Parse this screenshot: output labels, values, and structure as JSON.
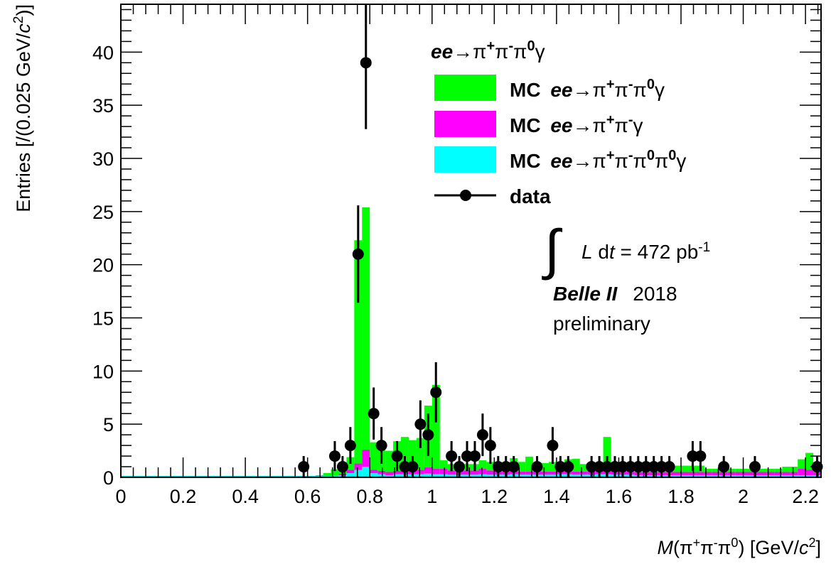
{
  "chart_data": {
    "type": "bar",
    "stacked": true,
    "bin_width": 0.025,
    "xlim": [
      0,
      2.25
    ],
    "ylim": [
      0,
      44.5
    ],
    "xticks": [
      0,
      0.2,
      0.4,
      0.6,
      0.8,
      1,
      1.2,
      1.4,
      1.6,
      1.8,
      2,
      2.2
    ],
    "xtick_labels": [
      "0",
      "0.2",
      "0.4",
      "0.6",
      "0.8",
      "1",
      "1.2",
      "1.4",
      "1.6",
      "1.8",
      "2",
      "2.2"
    ],
    "yticks": [
      0,
      5,
      10,
      15,
      20,
      25,
      30,
      35,
      40
    ],
    "ytick_labels": [
      "0",
      "5",
      "10",
      "15",
      "20",
      "25",
      "30",
      "35",
      "40"
    ],
    "xlabel": {
      "m": "M",
      "open": "(π",
      "plus": "+",
      "pi2": "π",
      "minus": "-",
      "pi3": "π",
      "zero": "0",
      "rest": ") [GeV/",
      "c": "c",
      "two": "2",
      "close": "]"
    },
    "ylabel": {
      "pre": "Entries [/(0.025 GeV/",
      "c": "c",
      "two": "2",
      "close": ")]"
    },
    "legend": {
      "placement": "top-right",
      "header": {
        "ee": "ee",
        "arrow": "→π",
        "plus": "+",
        "pi": "π",
        "minus": "-",
        "pi0": "π",
        "zero": "0",
        "gamma": "γ"
      },
      "entries": [
        {
          "prefix": "MC ",
          "ee": "ee",
          "arrow": "→π",
          "sup1": "+",
          "pi": "π",
          "sup2": "-",
          "rest": "π",
          "sup3": "0",
          "tail": "γ",
          "extra": "",
          "sup4": "",
          "end": "",
          "color": "#00ff00"
        },
        {
          "prefix": "MC ",
          "ee": "ee",
          "arrow": "→π",
          "sup1": "+",
          "pi": "π",
          "sup2": "-",
          "rest": "γ",
          "sup3": "",
          "tail": "",
          "extra": "",
          "sup4": "",
          "end": "",
          "color": "#ff00ff"
        },
        {
          "prefix": "MC ",
          "ee": "ee",
          "arrow": "→π",
          "sup1": "+",
          "pi": "π",
          "sup2": "-",
          "rest": "π",
          "sup3": "0",
          "tail": "π",
          "extra": "0",
          "sup4": "",
          "end": "γ",
          "color": "#00ffff"
        }
      ],
      "data_label": "data"
    },
    "annotation": {
      "integral": "∫",
      "L": "L",
      "dt_pre": " d",
      "t": "t",
      "value": " = 472 pb",
      "sup": "-1",
      "experiment": "Belle II",
      "year": "2018",
      "status": "preliminary"
    },
    "series": [
      {
        "name": "MC ee→π+π-π0π0γ",
        "color": "#00ffff",
        "bins": [
          [
            0.65,
            0.1
          ],
          [
            0.675,
            0.15
          ],
          [
            0.7,
            0.2
          ],
          [
            0.725,
            0.4
          ],
          [
            0.75,
            0.7
          ],
          [
            0.775,
            1.0
          ],
          [
            0.8,
            0.4
          ],
          [
            0.825,
            0.3
          ],
          [
            0.85,
            0.2
          ],
          [
            0.875,
            0.3
          ],
          [
            0.9,
            0.3
          ],
          [
            0.925,
            0.3
          ],
          [
            0.95,
            0.3
          ],
          [
            0.975,
            0.35
          ],
          [
            1.0,
            0.3
          ],
          [
            1.025,
            0.3
          ],
          [
            1.05,
            0.25
          ],
          [
            1.075,
            0.25
          ],
          [
            1.1,
            0.25
          ],
          [
            1.125,
            0.25
          ],
          [
            1.15,
            0.3
          ],
          [
            1.175,
            0.25
          ],
          [
            1.2,
            0.25
          ],
          [
            1.225,
            0.25
          ],
          [
            1.25,
            0.3
          ],
          [
            1.275,
            0.25
          ],
          [
            1.3,
            0.25
          ],
          [
            1.325,
            0.25
          ],
          [
            1.35,
            0.25
          ],
          [
            1.375,
            0.25
          ],
          [
            1.4,
            0.3
          ],
          [
            1.425,
            0.3
          ],
          [
            1.45,
            0.25
          ],
          [
            1.475,
            0.25
          ],
          [
            1.5,
            0.25
          ],
          [
            1.525,
            0.3
          ],
          [
            1.55,
            0.3
          ],
          [
            1.575,
            0.25
          ],
          [
            1.6,
            0.25
          ],
          [
            1.625,
            0.25
          ],
          [
            1.65,
            0.2
          ],
          [
            1.675,
            0.2
          ],
          [
            1.7,
            0.2
          ],
          [
            1.725,
            0.2
          ],
          [
            1.75,
            0.2
          ],
          [
            1.775,
            0.2
          ],
          [
            1.8,
            0.2
          ],
          [
            1.825,
            0.2
          ],
          [
            1.85,
            0.2
          ],
          [
            1.875,
            0.2
          ],
          [
            1.9,
            0.2
          ],
          [
            1.925,
            0.2
          ],
          [
            1.95,
            0.2
          ],
          [
            1.975,
            0.2
          ],
          [
            2.0,
            0.2
          ],
          [
            2.025,
            0.2
          ],
          [
            2.05,
            0.2
          ],
          [
            2.075,
            0.2
          ],
          [
            2.1,
            0.2
          ],
          [
            2.125,
            0.2
          ],
          [
            2.15,
            0.2
          ],
          [
            2.175,
            0.2
          ],
          [
            2.2,
            0.2
          ],
          [
            2.225,
            0.2
          ]
        ]
      },
      {
        "name": "MC ee→π+π-γ",
        "color": "#ff00ff",
        "bins": [
          [
            0.7,
            0.1
          ],
          [
            0.725,
            0.3
          ],
          [
            0.75,
            0.6
          ],
          [
            0.775,
            1.6
          ],
          [
            0.8,
            0.3
          ],
          [
            0.825,
            0.3
          ],
          [
            0.85,
            0.3
          ],
          [
            0.875,
            0.3
          ],
          [
            0.9,
            0.3
          ],
          [
            0.925,
            0.3
          ],
          [
            0.95,
            0.4
          ],
          [
            0.975,
            0.6
          ],
          [
            1.0,
            0.5
          ],
          [
            1.025,
            0.5
          ],
          [
            1.05,
            0.4
          ],
          [
            1.075,
            0.4
          ],
          [
            1.1,
            0.4
          ],
          [
            1.125,
            0.4
          ],
          [
            1.15,
            0.5
          ],
          [
            1.175,
            0.4
          ],
          [
            1.2,
            0.3
          ],
          [
            1.225,
            0.3
          ],
          [
            1.25,
            0.3
          ],
          [
            1.275,
            0.3
          ],
          [
            1.3,
            0.3
          ],
          [
            1.325,
            0.3
          ],
          [
            1.35,
            0.3
          ],
          [
            1.375,
            0.3
          ],
          [
            1.4,
            0.4
          ],
          [
            1.425,
            0.3
          ],
          [
            1.45,
            0.3
          ],
          [
            1.475,
            0.3
          ],
          [
            1.5,
            0.3
          ],
          [
            1.525,
            0.3
          ],
          [
            1.55,
            1.0
          ],
          [
            1.575,
            0.3
          ],
          [
            1.6,
            0.3
          ],
          [
            1.625,
            0.3
          ],
          [
            1.65,
            0.3
          ],
          [
            1.675,
            0.3
          ],
          [
            1.7,
            0.3
          ],
          [
            1.725,
            0.3
          ],
          [
            1.75,
            0.3
          ],
          [
            1.775,
            0.3
          ],
          [
            1.8,
            0.3
          ],
          [
            1.825,
            0.3
          ],
          [
            1.85,
            0.3
          ],
          [
            1.875,
            0.3
          ],
          [
            1.9,
            0.3
          ],
          [
            1.925,
            0.3
          ],
          [
            1.95,
            0.3
          ],
          [
            1.975,
            0.3
          ],
          [
            2.0,
            0.3
          ],
          [
            2.025,
            0.3
          ],
          [
            2.05,
            0.3
          ],
          [
            2.075,
            0.3
          ],
          [
            2.1,
            0.3
          ],
          [
            2.125,
            0.3
          ],
          [
            2.15,
            0.3
          ],
          [
            2.175,
            0.6
          ],
          [
            2.2,
            0.5
          ],
          [
            2.225,
            0.3
          ]
        ]
      },
      {
        "name": "MC ee→π+π-π0γ",
        "color": "#00ff00",
        "bins": [
          [
            0.625,
            0.2
          ],
          [
            0.65,
            0.3
          ],
          [
            0.675,
            0.6
          ],
          [
            0.7,
            1.0
          ],
          [
            0.725,
            1.2
          ],
          [
            0.75,
            21.0
          ],
          [
            0.775,
            22.8
          ],
          [
            0.8,
            2.6
          ],
          [
            0.825,
            2.0
          ],
          [
            0.85,
            2.0
          ],
          [
            0.875,
            2.8
          ],
          [
            0.9,
            3.2
          ],
          [
            0.925,
            2.9
          ],
          [
            0.95,
            3.0
          ],
          [
            0.975,
            5.8
          ],
          [
            1.0,
            7.9
          ],
          [
            1.025,
            0.8
          ],
          [
            1.05,
            0.6
          ],
          [
            1.075,
            0.6
          ],
          [
            1.1,
            0.6
          ],
          [
            1.125,
            0.6
          ],
          [
            1.15,
            0.8
          ],
          [
            1.175,
            0.8
          ],
          [
            1.2,
            0.9
          ],
          [
            1.225,
            0.8
          ],
          [
            1.25,
            1.2
          ],
          [
            1.275,
            0.9
          ],
          [
            1.3,
            1.4
          ],
          [
            1.325,
            0.8
          ],
          [
            1.35,
            0.8
          ],
          [
            1.375,
            0.9
          ],
          [
            1.4,
            0.7
          ],
          [
            1.425,
            1.1
          ],
          [
            1.45,
            1.2
          ],
          [
            1.475,
            0.7
          ],
          [
            1.5,
            0.6
          ],
          [
            1.525,
            0.6
          ],
          [
            1.55,
            2.5
          ],
          [
            1.575,
            0.6
          ],
          [
            1.6,
            0.6
          ],
          [
            1.625,
            0.6
          ],
          [
            1.65,
            0.6
          ],
          [
            1.675,
            0.6
          ],
          [
            1.7,
            0.6
          ],
          [
            1.725,
            0.6
          ],
          [
            1.75,
            0.6
          ],
          [
            1.775,
            0.6
          ],
          [
            1.8,
            0.6
          ],
          [
            1.825,
            0.6
          ],
          [
            1.85,
            0.6
          ],
          [
            1.875,
            0.3
          ],
          [
            1.9,
            0.3
          ],
          [
            1.925,
            0.3
          ],
          [
            1.95,
            0.3
          ],
          [
            1.975,
            0.3
          ],
          [
            2.0,
            0.3
          ],
          [
            2.025,
            0.3
          ],
          [
            2.05,
            0.3
          ],
          [
            2.075,
            0.3
          ],
          [
            2.1,
            0.3
          ],
          [
            2.125,
            0.5
          ],
          [
            2.15,
            0.5
          ],
          [
            2.175,
            0.9
          ],
          [
            2.2,
            1.6
          ],
          [
            2.225,
            0.6
          ]
        ]
      }
    ],
    "data_points": [
      [
        0.5875,
        1,
        1
      ],
      [
        0.6875,
        2,
        1.41
      ],
      [
        0.7125,
        1,
        1
      ],
      [
        0.7375,
        3,
        1.73
      ],
      [
        0.7625,
        21,
        4.58
      ],
      [
        0.7875,
        39,
        6.24
      ],
      [
        0.8125,
        6,
        2.45
      ],
      [
        0.8375,
        3,
        1.73
      ],
      [
        0.8875,
        2,
        1.41
      ],
      [
        0.9125,
        1,
        1
      ],
      [
        0.9375,
        1,
        1
      ],
      [
        0.9625,
        5,
        2.24
      ],
      [
        0.9875,
        4,
        2.0
      ],
      [
        1.0125,
        8,
        2.83
      ],
      [
        1.0625,
        2,
        1.41
      ],
      [
        1.0875,
        1,
        1
      ],
      [
        1.1125,
        2,
        1.41
      ],
      [
        1.1375,
        2,
        1.41
      ],
      [
        1.1625,
        4,
        2.0
      ],
      [
        1.1875,
        3,
        1.73
      ],
      [
        1.2125,
        1,
        1
      ],
      [
        1.2375,
        1,
        1
      ],
      [
        1.2625,
        1,
        1
      ],
      [
        1.3375,
        1,
        1
      ],
      [
        1.3875,
        3,
        1.73
      ],
      [
        1.4125,
        1,
        1
      ],
      [
        1.4375,
        1,
        1
      ],
      [
        1.5125,
        1,
        1
      ],
      [
        1.5375,
        1,
        1
      ],
      [
        1.5625,
        1,
        1
      ],
      [
        1.5875,
        1,
        1
      ],
      [
        1.6125,
        1,
        1
      ],
      [
        1.6375,
        1,
        1
      ],
      [
        1.6625,
        1,
        1
      ],
      [
        1.6875,
        1,
        1
      ],
      [
        1.7125,
        1,
        1
      ],
      [
        1.7375,
        1,
        1
      ],
      [
        1.7625,
        1,
        1
      ],
      [
        1.8375,
        2,
        1.41
      ],
      [
        1.8625,
        2,
        1.41
      ],
      [
        1.9375,
        1,
        1
      ],
      [
        2.0375,
        1,
        1
      ],
      [
        2.2375,
        1,
        1
      ]
    ]
  }
}
